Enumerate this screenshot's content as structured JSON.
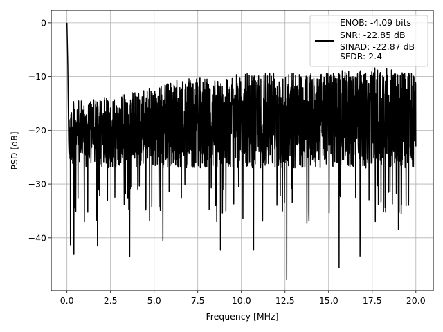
{
  "chart_data": {
    "type": "line",
    "title": "",
    "xlabel": "Frequency [MHz]",
    "ylabel": "PSD [dB]",
    "xlim": [
      -0.9,
      21.0
    ],
    "ylim": [
      -49.8,
      2.3
    ],
    "xticks": [
      0.0,
      2.5,
      5.0,
      7.5,
      10.0,
      12.5,
      15.0,
      17.5,
      20.0
    ],
    "xtick_labels": [
      "0.0",
      "2.5",
      "5.0",
      "7.5",
      "10.0",
      "12.5",
      "15.0",
      "17.5",
      "20.0"
    ],
    "yticks": [
      0,
      -10,
      -20,
      -30,
      -40
    ],
    "ytick_labels": [
      "0",
      "−10",
      "−20",
      "−30",
      "−40"
    ],
    "grid": true,
    "legend_position": "top-right",
    "legend_lines": [
      "ENOB: -4.09 bits",
      "SNR: -22.85 dB",
      "SINAD: -22.87 dB",
      "SFDR: 2.4"
    ],
    "series": [
      {
        "color": "#000000",
        "x_range": [
          0,
          20
        ],
        "trace": "dense noisy PSD trace",
        "points": [
          [
            0.0,
            0.0
          ],
          [
            0.05,
            -8.0
          ],
          [
            0.1,
            -22.0
          ],
          [
            0.2,
            -41.3
          ],
          [
            0.4,
            -43.0
          ],
          [
            1.0,
            -37.0
          ],
          [
            1.75,
            -41.5
          ],
          [
            3.6,
            -43.5
          ],
          [
            5.5,
            -40.5
          ],
          [
            8.8,
            -42.3
          ],
          [
            10.7,
            -42.3
          ],
          [
            12.6,
            -47.8
          ],
          [
            15.6,
            -45.5
          ],
          [
            16.8,
            -43.4
          ],
          [
            19.0,
            -38.5
          ]
        ],
        "peaks": [
          [
            1.2,
            -13.0
          ],
          [
            5.0,
            -10.5
          ],
          [
            6.5,
            -9.0
          ],
          [
            9.0,
            -8.5
          ],
          [
            12.0,
            -7.0
          ],
          [
            14.2,
            -8.0
          ],
          [
            16.7,
            -7.0
          ],
          [
            18.3,
            -6.8
          ],
          [
            19.9,
            -8.0
          ]
        ]
      }
    ]
  }
}
